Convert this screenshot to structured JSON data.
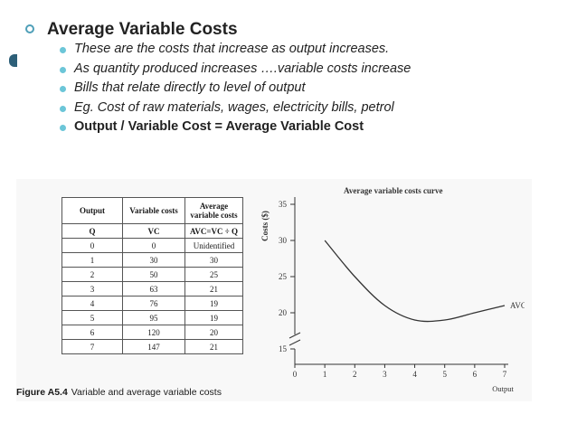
{
  "heading": "Average Variable Costs",
  "bullets": [
    {
      "text": "These are the costs that increase as output increases.",
      "style": "italic"
    },
    {
      "text": "As quantity produced increases ….variable costs increase",
      "style": "italic"
    },
    {
      "text": "Bills that relate directly to level of output",
      "style": "italic"
    },
    {
      "text": "Eg. Cost of raw materials, wages, electricity bills, petrol",
      "style": "italic"
    },
    {
      "text": "Output / Variable Cost = Average Variable Cost",
      "style": "bold"
    }
  ],
  "figure": {
    "caption_label": "Figure A5.4",
    "caption_text": "Variable and average variable costs",
    "table": {
      "headers": [
        "Output",
        "Variable costs",
        "Average variable costs"
      ],
      "symbols": [
        "Q",
        "VC",
        "AVC=VC ÷ Q"
      ],
      "rows": [
        [
          "0",
          "0",
          "Unidentified"
        ],
        [
          "1",
          "30",
          "30"
        ],
        [
          "2",
          "50",
          "25"
        ],
        [
          "3",
          "63",
          "21"
        ],
        [
          "4",
          "76",
          "19"
        ],
        [
          "5",
          "95",
          "19"
        ],
        [
          "6",
          "120",
          "20"
        ],
        [
          "7",
          "147",
          "21"
        ]
      ]
    }
  },
  "chart_data": {
    "type": "line",
    "title": "Average variable costs curve",
    "xlabel": "Output",
    "ylabel": "Costs ($)",
    "x_ticks": [
      "0",
      "1",
      "2",
      "3",
      "4",
      "5",
      "6",
      "7"
    ],
    "y_ticks": [
      "15",
      "20",
      "25",
      "30",
      "35"
    ],
    "xlim": [
      0,
      7
    ],
    "ylim": [
      15,
      35
    ],
    "series": [
      {
        "name": "AVC",
        "x": [
          1,
          2,
          3,
          4,
          5,
          6,
          7
        ],
        "values": [
          30,
          25,
          21,
          19,
          19,
          20,
          21
        ]
      }
    ]
  }
}
